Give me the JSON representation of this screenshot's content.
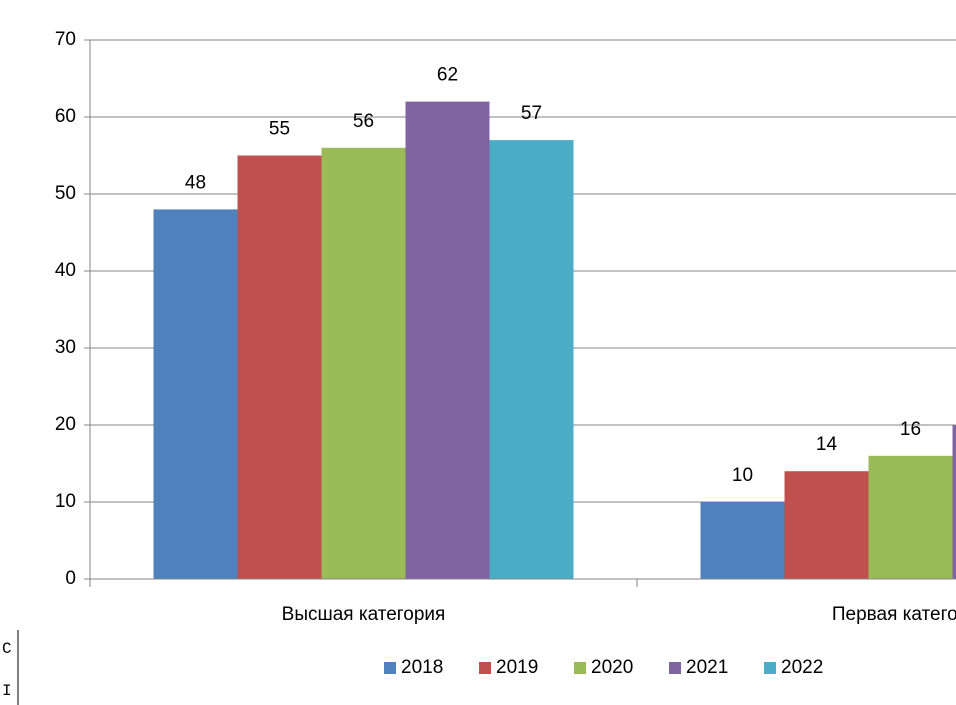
{
  "chart_data": {
    "type": "bar",
    "categories": [
      "Высшая категория",
      "Первая категория"
    ],
    "series": [
      {
        "name": "2018",
        "color": "#4f81bd",
        "values": [
          48,
          10
        ]
      },
      {
        "name": "2019",
        "color": "#c0504d",
        "values": [
          55,
          14
        ]
      },
      {
        "name": "2020",
        "color": "#9bbb59",
        "values": [
          56,
          16
        ]
      },
      {
        "name": "2021",
        "color": "#8064a2",
        "values": [
          62,
          20
        ]
      },
      {
        "name": "2022",
        "color": "#4bacc6",
        "values": [
          57,
          null
        ]
      }
    ],
    "ylim": [
      0,
      70
    ],
    "yticks": [
      0,
      10,
      20,
      30,
      40,
      50,
      60,
      70
    ],
    "grid": true,
    "legend": "bottom",
    "annotations": [
      "С",
      "I"
    ]
  }
}
